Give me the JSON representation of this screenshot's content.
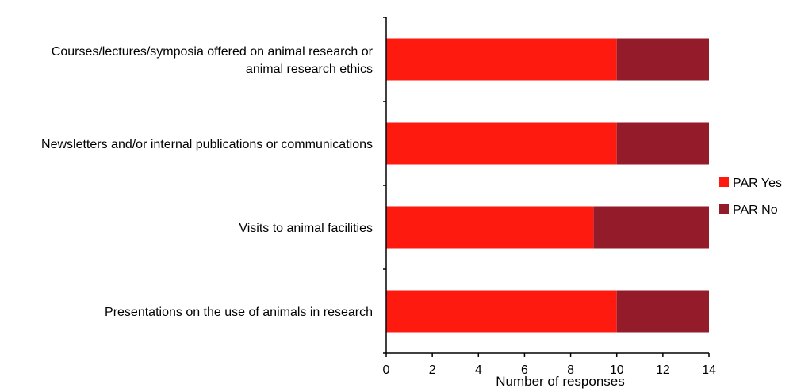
{
  "chart_data": {
    "type": "bar",
    "orientation": "horizontal",
    "stacked": true,
    "categories": [
      "Courses/lectures/symposia offered on animal research or|animal research ethics",
      "Newsletters and/or internal publications or communications",
      "Visits to animal facilities",
      "Presentations on the use of animals in research"
    ],
    "series": [
      {
        "name": "PAR Yes",
        "values": [
          10,
          10,
          9,
          10
        ],
        "color": "#ff1a0f"
      },
      {
        "name": "PAR No",
        "values": [
          4,
          4,
          5,
          4
        ],
        "color": "#941b2a"
      }
    ],
    "xlabel": "Number of responses",
    "ylabel": "",
    "xlim": [
      0,
      14
    ],
    "xticks": [
      0,
      2,
      4,
      6,
      8,
      10,
      12,
      14
    ],
    "grid": false,
    "legend_position": "right"
  }
}
